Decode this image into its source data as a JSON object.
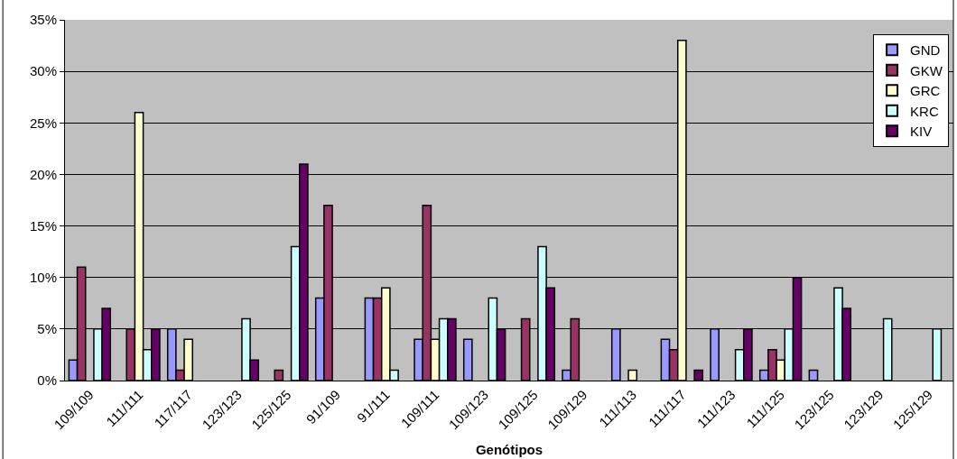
{
  "chart_data": {
    "type": "bar",
    "xlabel": "Genótipos",
    "categories": [
      "109/109",
      "111/111",
      "117/117",
      "123/123",
      "125/125",
      "91/109",
      "91/111",
      "109/111",
      "109/123",
      "109/125",
      "109/129",
      "111/113",
      "111/117",
      "111/123",
      "111/125",
      "123/125",
      "123/129",
      "125/129"
    ],
    "series": [
      {
        "name": "GND",
        "color": "#9999ff",
        "values": [
          2,
          0,
          5,
          0,
          0,
          8,
          8,
          4,
          4,
          0,
          1,
          5,
          4,
          5,
          1,
          1,
          0,
          0
        ]
      },
      {
        "name": "GKW",
        "color": "#993366",
        "values": [
          11,
          5,
          1,
          0,
          1,
          17,
          8,
          17,
          0,
          6,
          6,
          0,
          3,
          0,
          3,
          0,
          0,
          0
        ]
      },
      {
        "name": "GRC",
        "color": "#ffffcc",
        "values": [
          0,
          26,
          4,
          0,
          0,
          0,
          9,
          4,
          0,
          0,
          0,
          1,
          33,
          0,
          2,
          0,
          0,
          0
        ]
      },
      {
        "name": "KRC",
        "color": "#ccffff",
        "values": [
          5,
          3,
          0,
          6,
          13,
          0,
          1,
          6,
          8,
          13,
          0,
          0,
          0,
          3,
          5,
          9,
          6,
          5
        ]
      },
      {
        "name": "KIV",
        "color": "#660066",
        "values": [
          7,
          5,
          0,
          2,
          21,
          0,
          0,
          6,
          5,
          9,
          0,
          0,
          1,
          5,
          10,
          7,
          0,
          0
        ]
      }
    ],
    "ylim": [
      0,
      35
    ],
    "yticks": [
      {
        "value": 0,
        "label": "0%"
      },
      {
        "value": 5,
        "label": "5%"
      },
      {
        "value": 10,
        "label": "10%"
      },
      {
        "value": 15,
        "label": "15%"
      },
      {
        "value": 20,
        "label": "20%"
      },
      {
        "value": 25,
        "label": "25%"
      },
      {
        "value": 30,
        "label": "30%"
      },
      {
        "value": 35,
        "label": "35%"
      }
    ],
    "grid": "y",
    "legend": "top right"
  }
}
